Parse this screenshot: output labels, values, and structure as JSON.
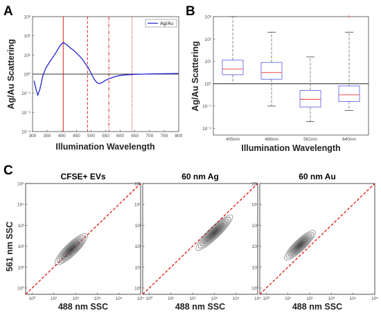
{
  "panels": {
    "A": "A",
    "B": "B",
    "C": "C"
  },
  "chart_data": [
    {
      "panel": "A",
      "type": "line",
      "xlabel": "Illumination Wavelength",
      "ylabel": "Ag/Au Scattering",
      "xlim": [
        300,
        800
      ],
      "ylim_log10": [
        -3,
        3
      ],
      "yscale": "log",
      "x_ticks": [
        300,
        350,
        400,
        450,
        500,
        550,
        600,
        650,
        700,
        750,
        800
      ],
      "y_ticks": [
        "10⁻³",
        "10⁻²",
        "10⁻¹",
        "10⁰",
        "10¹",
        "10²",
        "10³"
      ],
      "legend": {
        "position": "top-right",
        "entries": [
          "Ag/Au"
        ]
      },
      "series": [
        {
          "name": "Ag/Au",
          "color": "#2121cc",
          "x": [
            305,
            312,
            318,
            325,
            335,
            345,
            355,
            365,
            375,
            385,
            395,
            405,
            412,
            420,
            430,
            440,
            450,
            460,
            470,
            480,
            490,
            500,
            510,
            520,
            530,
            540,
            550,
            560,
            570,
            580,
            590,
            600,
            620,
            640,
            660,
            680,
            700,
            750,
            800
          ],
          "y_log10": [
            -0.35,
            -0.8,
            -1.1,
            -0.8,
            -0.1,
            0.3,
            0.55,
            0.78,
            1.0,
            1.25,
            1.5,
            1.65,
            1.58,
            1.5,
            1.35,
            1.25,
            1.1,
            0.95,
            0.78,
            0.55,
            0.35,
            0.05,
            -0.25,
            -0.45,
            -0.5,
            -0.42,
            -0.32,
            -0.25,
            -0.2,
            -0.14,
            -0.1,
            -0.07,
            -0.04,
            -0.02,
            -0.01,
            0.0,
            0.01,
            0.02,
            0.03
          ]
        }
      ],
      "reference_line_y": 1,
      "vlines": [
        {
          "x": 405,
          "style": "solid",
          "color": "#dd2222"
        },
        {
          "x": 488,
          "style": "dashed",
          "color": "#dd2222"
        },
        {
          "x": 561,
          "style": "dashdot",
          "color": "#dd2222"
        },
        {
          "x": 640,
          "style": "dotted",
          "color": "#dd2222"
        }
      ]
    },
    {
      "panel": "B",
      "type": "box",
      "xlabel": "Illumination Wavelength",
      "ylabel": "Ag/Au Scattering",
      "yscale": "log",
      "ylim_log10": [
        -2.3,
        3
      ],
      "y_ticks": [
        "10⁻²",
        "10⁻¹",
        "10⁰",
        "10¹",
        "10²",
        "10³"
      ],
      "categories": [
        "405nm",
        "488nm",
        "561nm",
        "640nm"
      ],
      "box_color": "#5555ee",
      "median_color": "#ee3333",
      "reference_line_y": 1,
      "boxes": [
        {
          "whisker_low": 0.0,
          "q1": 0.4,
          "median": 0.65,
          "q3": 1.05,
          "whisker_high": 3.0
        },
        {
          "whisker_low": -1.0,
          "q1": 0.2,
          "median": 0.5,
          "q3": 0.95,
          "whisker_high": 2.3
        },
        {
          "whisker_low": -1.7,
          "q1": -1.05,
          "median": -0.7,
          "q3": -0.3,
          "whisker_high": 1.2
        },
        {
          "whisker_low": -1.2,
          "q1": -0.8,
          "median": -0.5,
          "q3": -0.1,
          "whisker_high": 2.3,
          "outliers": [
            3.0
          ]
        }
      ]
    },
    {
      "panel": "C",
      "type": "scatter",
      "xlabel": "488 nm SSC",
      "ylabel": "561 nm SSC",
      "xscale": "log",
      "yscale": "log",
      "xlim_log10": [
        -0.3,
        5
      ],
      "ylim_log10": [
        -0.3,
        5
      ],
      "x_ticks": [
        "10⁰",
        "10¹",
        "10²",
        "10³",
        "10⁴",
        "10⁵"
      ],
      "y_ticks": [
        "10⁰",
        "10¹",
        "10²",
        "10³",
        "10⁴",
        "10⁵"
      ],
      "diagonal_color": "#dd1111",
      "subplots": [
        {
          "title": "CFSE+ EVs",
          "center_log10": [
            1.8,
            1.85
          ],
          "spread": [
            1.0,
            0.28
          ]
        },
        {
          "title": "60 nm Ag",
          "center_log10": [
            3.0,
            2.65
          ],
          "spread": [
            1.15,
            0.26
          ]
        },
        {
          "title": "60 nm Au",
          "center_log10": [
            1.55,
            2.05
          ],
          "spread": [
            0.95,
            0.26
          ]
        }
      ]
    }
  ]
}
